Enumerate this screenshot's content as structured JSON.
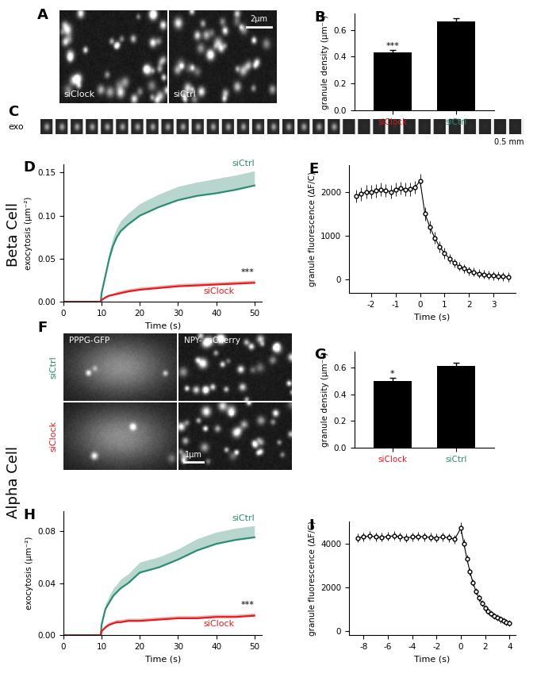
{
  "row_labels": [
    "Beta Cell",
    "Alpha Cell"
  ],
  "images": [
    {
      "panel": "A",
      "labels": [
        "siClock",
        "siCtrl"
      ],
      "scale_bar": "2μm"
    },
    {
      "panel": "C",
      "label": "exo",
      "scale_bar": "0.5 mm"
    },
    {
      "panel": "F",
      "columns": [
        "PPPG-GFP",
        "NPY- mCherry"
      ],
      "rows": [
        "siCtrl",
        "siClock"
      ],
      "scale_bar": "1μm"
    }
  ],
  "chart_data": [
    {
      "panel": "B",
      "type": "bar",
      "y_label": "granule density (μm⁻²)",
      "categories": [
        "siClock",
        "siCtrl"
      ],
      "values": [
        0.43,
        0.66
      ],
      "error": [
        0.02,
        0.025
      ],
      "color": "#000000",
      "ylim": [
        0,
        0.72
      ],
      "yticks": [
        0.0,
        0.2,
        0.4,
        0.6
      ],
      "annotations": [
        {
          "text": "***",
          "category": "siClock"
        }
      ]
    },
    {
      "panel": "D",
      "type": "line",
      "x_label": "Time (s)",
      "y_label": "exocytosis (μm⁻²)",
      "x": [
        0,
        5,
        9.8,
        10,
        11,
        12,
        13,
        14,
        15,
        17,
        20,
        25,
        30,
        35,
        40,
        45,
        50
      ],
      "series": [
        {
          "name": "siCtrl",
          "color": "#2e8b74",
          "values": [
            0,
            0,
            0,
            0.01,
            0.03,
            0.05,
            0.065,
            0.075,
            0.082,
            0.09,
            0.1,
            0.11,
            0.118,
            0.123,
            0.126,
            0.13,
            0.135
          ],
          "error": [
            0,
            0,
            0,
            0.003,
            0.006,
            0.008,
            0.01,
            0.011,
            0.012,
            0.013,
            0.014,
            0.015,
            0.016,
            0.016,
            0.017,
            0.017,
            0.017
          ]
        },
        {
          "name": "siClock",
          "color": "#e41a1c",
          "values": [
            0,
            0,
            0,
            0.002,
            0.005,
            0.007,
            0.008,
            0.009,
            0.01,
            0.012,
            0.014,
            0.016,
            0.018,
            0.019,
            0.02,
            0.021,
            0.022
          ],
          "error": [
            0,
            0,
            0,
            0.001,
            0.002,
            0.002,
            0.002,
            0.003,
            0.003,
            0.003,
            0.003,
            0.003,
            0.003,
            0.003,
            0.003,
            0.003,
            0.003
          ]
        }
      ],
      "xlim": [
        0,
        52
      ],
      "xticks": [
        0,
        10,
        20,
        30,
        40,
        50
      ],
      "ylim": [
        0,
        0.16
      ],
      "yticks": [
        {
          "value": 0,
          "label": "0.00"
        },
        {
          "value": 0.05,
          "label": "0.05"
        },
        {
          "value": 0.1,
          "label": "0.10"
        },
        0.15
      ],
      "annotations": [
        {
          "text": "***",
          "series": "siClock"
        }
      ]
    },
    {
      "panel": "E",
      "type": "line",
      "x_label": "Time (s)",
      "y_label": "granule fluorescence (ΔF/C)",
      "color": "#000000",
      "marker": "o",
      "x": [
        -2.6,
        -2.4,
        -2.2,
        -2.0,
        -1.8,
        -1.6,
        -1.4,
        -1.2,
        -1.0,
        -0.8,
        -0.6,
        -0.4,
        -0.2,
        0.0,
        0.2,
        0.4,
        0.6,
        0.8,
        1.0,
        1.2,
        1.4,
        1.6,
        1.8,
        2.0,
        2.2,
        2.4,
        2.6,
        2.8,
        3.0,
        3.2,
        3.4,
        3.6
      ],
      "series": [
        {
          "values": [
            1900,
            1950,
            2000,
            2000,
            2020,
            2050,
            2030,
            2000,
            2050,
            2080,
            2050,
            2060,
            2100,
            2250,
            1500,
            1200,
            950,
            750,
            600,
            480,
            380,
            300,
            250,
            200,
            170,
            140,
            120,
            100,
            90,
            80,
            70,
            60
          ],
          "error": [
            150,
            150,
            150,
            150,
            150,
            150,
            150,
            150,
            150,
            150,
            150,
            150,
            150,
            150,
            150,
            150,
            140,
            130,
            120,
            110,
            100,
            100,
            100,
            100,
            100,
            100,
            100,
            100,
            100,
            100,
            100,
            100
          ]
        }
      ],
      "xlim": [
        -2.9,
        3.9
      ],
      "xticks": [
        -2,
        -1,
        0,
        1,
        2,
        3
      ],
      "ylim": [
        -300,
        2600
      ],
      "yticks": [
        0,
        1000,
        2000
      ]
    },
    {
      "panel": "G",
      "type": "bar",
      "y_label": "granule density (μm⁻²)",
      "categories": [
        "siClock",
        "siCtrl"
      ],
      "values": [
        0.5,
        0.61
      ],
      "error": [
        0.02,
        0.025
      ],
      "color": "#000000",
      "ylim": [
        0,
        0.72
      ],
      "yticks": [
        0.0,
        0.2,
        0.4,
        0.6
      ],
      "annotations": [
        {
          "text": "*",
          "category": "siClock"
        }
      ]
    },
    {
      "panel": "H",
      "type": "line",
      "x_label": "Time (s)",
      "y_label": "exocytosis (μm⁻²)",
      "x": [
        0,
        5,
        9.8,
        10,
        11,
        12,
        13,
        14,
        15,
        17,
        20,
        25,
        30,
        35,
        40,
        45,
        50
      ],
      "series": [
        {
          "name": "siCtrl",
          "color": "#2e8b74",
          "values": [
            0,
            0,
            0,
            0.008,
            0.02,
            0.025,
            0.03,
            0.033,
            0.036,
            0.04,
            0.048,
            0.052,
            0.058,
            0.065,
            0.07,
            0.073,
            0.075
          ],
          "error": [
            0,
            0,
            0,
            0.002,
            0.004,
            0.005,
            0.006,
            0.006,
            0.007,
            0.007,
            0.008,
            0.008,
            0.008,
            0.009,
            0.009,
            0.009,
            0.009
          ]
        },
        {
          "name": "siClock",
          "color": "#e41a1c",
          "values": [
            0,
            0,
            0,
            0.003,
            0.006,
            0.008,
            0.009,
            0.01,
            0.01,
            0.011,
            0.011,
            0.012,
            0.013,
            0.013,
            0.014,
            0.014,
            0.015
          ],
          "error": [
            0,
            0,
            0,
            0.001,
            0.002,
            0.002,
            0.002,
            0.002,
            0.002,
            0.002,
            0.002,
            0.002,
            0.002,
            0.002,
            0.002,
            0.002,
            0.002
          ]
        }
      ],
      "xlim": [
        0,
        52
      ],
      "xticks": [
        0,
        10,
        20,
        30,
        40,
        50
      ],
      "ylim": [
        0,
        0.095
      ],
      "yticks": [
        {
          "value": 0,
          "label": "0.00"
        },
        {
          "value": 0.04,
          "label": "0.04"
        },
        {
          "value": 0.08,
          "label": "0.08"
        }
      ],
      "annotations": [
        {
          "text": "***",
          "series": "siClock"
        }
      ]
    },
    {
      "panel": "I",
      "type": "line",
      "x_label": "Time (s)",
      "y_label": "granule fluorescence (ΔF/C)",
      "color": "#000000",
      "marker": "o",
      "x": [
        -8.5,
        -8.0,
        -7.5,
        -7.0,
        -6.5,
        -6.0,
        -5.5,
        -5.0,
        -4.5,
        -4.0,
        -3.5,
        -3.0,
        -2.5,
        -2.0,
        -1.5,
        -1.0,
        -0.5,
        0.0,
        0.25,
        0.5,
        0.75,
        1.0,
        1.25,
        1.5,
        1.75,
        2.0,
        2.25,
        2.5,
        2.75,
        3.0,
        3.25,
        3.5,
        3.75,
        4.0
      ],
      "series": [
        {
          "values": [
            4250,
            4300,
            4350,
            4300,
            4280,
            4320,
            4350,
            4300,
            4250,
            4300,
            4320,
            4300,
            4280,
            4250,
            4300,
            4260,
            4200,
            4700,
            4000,
            3300,
            2700,
            2200,
            1800,
            1500,
            1250,
            1050,
            900,
            780,
            680,
            600,
            520,
            460,
            400,
            350
          ],
          "error": [
            200,
            200,
            200,
            200,
            200,
            200,
            200,
            200,
            200,
            200,
            200,
            200,
            200,
            200,
            200,
            200,
            200,
            250,
            200,
            180,
            160,
            150,
            150,
            150,
            150,
            150,
            150,
            150,
            150,
            150,
            150,
            150,
            150,
            150
          ]
        }
      ],
      "xlim": [
        -9.2,
        4.5
      ],
      "xticks": [
        -8,
        -6,
        -4,
        -2,
        0,
        2,
        4
      ],
      "ylim": [
        -200,
        5000
      ],
      "yticks": [
        0,
        2000,
        4000
      ]
    }
  ]
}
